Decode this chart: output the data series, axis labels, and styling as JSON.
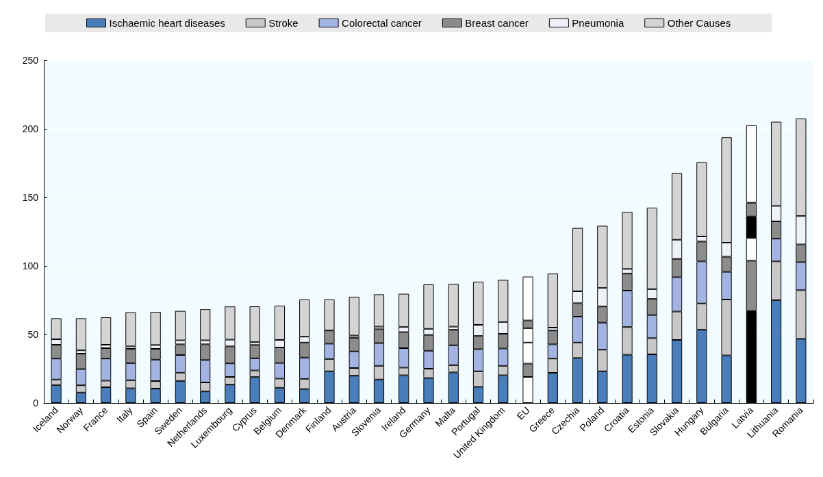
{
  "chart_data": {
    "type": "bar",
    "stacked": true,
    "categories": [
      "Iceland",
      "Norway",
      "France",
      "Italy",
      "Spain",
      "Sweden",
      "Netherlands",
      "Luxembourg",
      "Cyprus",
      "Belgium",
      "Denmark",
      "Finland",
      "Austria",
      "Slovenia",
      "Ireland",
      "Germany",
      "Malta",
      "Portugal",
      "United Kingdom",
      "EU",
      "Greece",
      "Czechia",
      "Poland",
      "Croatia",
      "Estonia",
      "Slovakia",
      "Hungary",
      "Bulgaria",
      "Latvia",
      "Lithuania",
      "Romania"
    ],
    "series": [
      {
        "name": "Ischaemic heart diseases",
        "color": "#4a7ebb",
        "colors": [
          null,
          null,
          null,
          null,
          null,
          null,
          null,
          null,
          null,
          null,
          null,
          null,
          null,
          null,
          null,
          null,
          null,
          null,
          null,
          "#ffffff",
          null,
          null,
          null,
          null,
          null,
          null,
          null,
          null,
          "#000000",
          null,
          null
        ],
        "values": [
          13.1,
          7.6,
          11.5,
          10.7,
          10.5,
          16.1,
          8.4,
          13.4,
          18.9,
          11.1,
          10.2,
          23.1,
          19.9,
          17.1,
          20.2,
          18.2,
          22.3,
          11.8,
          20.2,
          19.0,
          22.0,
          32.8,
          23.1,
          35.2,
          35.5,
          46.0,
          53.4,
          34.7,
          67.0,
          75.1,
          46.8
        ]
      },
      {
        "name": "Stroke",
        "color": "#c8c8c8",
        "colors": [
          null,
          null,
          null,
          null,
          null,
          null,
          null,
          null,
          null,
          null,
          null,
          null,
          null,
          null,
          null,
          null,
          null,
          null,
          null,
          "#8c8c8c",
          null,
          null,
          null,
          null,
          null,
          null,
          null,
          null,
          "#8c8c8c",
          null,
          null
        ],
        "values": [
          4.0,
          5.3,
          4.8,
          5.9,
          5.5,
          6.0,
          6.6,
          5.6,
          4.8,
          6.7,
          7.4,
          9.0,
          5.6,
          10.0,
          5.6,
          6.8,
          5.3,
          11.3,
          6.9,
          9.7,
          10.4,
          11.3,
          15.8,
          20.2,
          11.8,
          20.7,
          19.2,
          40.8,
          36.8,
          28.2,
          35.5
        ]
      },
      {
        "name": "Colorectal cancer",
        "color": "#a3b4e3",
        "colors": [
          null,
          null,
          null,
          null,
          null,
          null,
          null,
          null,
          null,
          null,
          null,
          null,
          null,
          null,
          null,
          null,
          null,
          null,
          null,
          "#ffffff",
          null,
          null,
          null,
          null,
          null,
          null,
          null,
          null,
          "#ffffff",
          null,
          null
        ],
        "values": [
          15.3,
          11.8,
          16.1,
          12.5,
          15.6,
          12.9,
          16.3,
          9.9,
          8.9,
          11.4,
          15.5,
          11.2,
          12.1,
          16.6,
          14.2,
          13.1,
          14.5,
          16.1,
          12.6,
          15.4,
          10.4,
          18.9,
          19.7,
          26.6,
          16.9,
          25.0,
          30.7,
          20.2,
          16.5,
          16.6,
          20.4
        ]
      },
      {
        "name": "Breast cancer",
        "color": "#8c8c8c",
        "colors": [
          null,
          null,
          null,
          null,
          null,
          null,
          null,
          null,
          null,
          null,
          null,
          null,
          null,
          null,
          null,
          null,
          null,
          null,
          null,
          "#ffffff",
          null,
          null,
          null,
          null,
          null,
          null,
          null,
          null,
          "#000000",
          null,
          null
        ],
        "values": [
          10.1,
          11.3,
          7.6,
          10.4,
          7.9,
          7.8,
          11.5,
          12.4,
          9.7,
          11.3,
          11.0,
          9.6,
          10.0,
          10.1,
          11.7,
          11.6,
          11.3,
          9.7,
          10.8,
          10.5,
          10.1,
          9.8,
          11.8,
          12.4,
          11.7,
          13.4,
          14.5,
          11.0,
          15.8,
          12.6,
          13.0
        ]
      },
      {
        "name": "Pneumonia",
        "color": "#eef2f8",
        "colors": [
          null,
          null,
          null,
          null,
          null,
          null,
          null,
          null,
          null,
          null,
          null,
          null,
          null,
          null,
          null,
          null,
          null,
          null,
          null,
          "#8c8c8c",
          null,
          null,
          null,
          null,
          null,
          null,
          null,
          null,
          "#8c8c8c",
          null,
          null
        ],
        "values": [
          4.0,
          2.4,
          2.5,
          1.8,
          2.8,
          2.9,
          2.9,
          4.9,
          2.1,
          5.5,
          4.3,
          null,
          1.6,
          1.9,
          3.7,
          4.4,
          2.3,
          8.1,
          8.6,
          5.6,
          2.1,
          8.7,
          13.5,
          3.4,
          7.2,
          14.0,
          3.7,
          10.3,
          10.0,
          11.3,
          20.7
        ]
      },
      {
        "name": "Other Causes",
        "color": "#d4d4d4",
        "colors": [
          null,
          null,
          null,
          null,
          null,
          null,
          null,
          null,
          null,
          null,
          null,
          null,
          null,
          null,
          null,
          null,
          null,
          null,
          null,
          "#ffffff",
          null,
          null,
          null,
          null,
          null,
          null,
          null,
          null,
          "#ffffff",
          null,
          null
        ],
        "values": [
          15.3,
          23.4,
          20.0,
          24.9,
          24.2,
          21.5,
          22.7,
          24.2,
          26.1,
          25.0,
          27.1,
          22.6,
          28.3,
          23.6,
          24.3,
          32.4,
          31.1,
          31.5,
          30.7,
          32.0,
          39.4,
          46.2,
          45.4,
          41.5,
          59.4,
          48.5,
          54.1,
          76.9,
          56.5,
          61.4,
          71.2
        ]
      }
    ],
    "ylim": [
      0,
      250
    ],
    "yticks": [
      0,
      50,
      100,
      150,
      200,
      250
    ],
    "grid": "y",
    "legend": "top"
  }
}
